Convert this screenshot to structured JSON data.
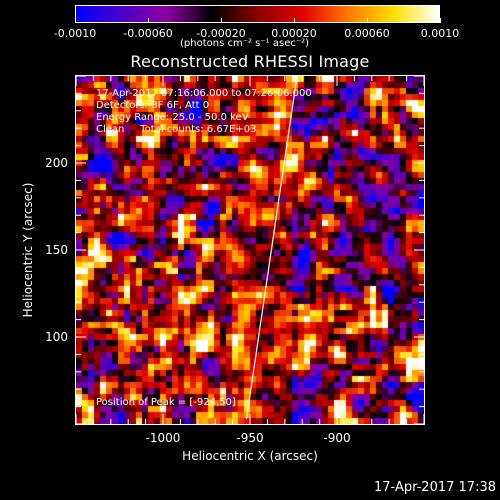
{
  "colorbar": {
    "min": -0.001,
    "max": 0.001,
    "tick_labels": [
      "-0.0010",
      "-0.00060",
      "-0.00020",
      "0.00020",
      "0.00060",
      "0.0010"
    ],
    "tick_values": [
      -0.001,
      -0.0006,
      -0.0002,
      0.0002,
      0.0006,
      0.001
    ],
    "units": "(photons cm⁻² s⁻¹ asec⁻²)",
    "colors": [
      "#0000ff",
      "#4b00c8",
      "#8a00a0",
      "#000000",
      "#8a0000",
      "#e00000",
      "#ff7a00",
      "#ffe000",
      "#ffffff"
    ]
  },
  "title": "Reconstructed RHESSI Image",
  "info_lines": [
    "17-Apr-2017 07:16:06.000 to 07:26:06.000",
    "Detectors: 3F 6F, Att 0",
    "Energy Range: 25.0 - 50.0 keV",
    "Clean     Total counts: 6.67E+03"
  ],
  "peak_label": "Position of Peak = [-924,50]",
  "axes": {
    "xlabel": "Heliocentric X (arcsec)",
    "ylabel": "Heliocentric Y (arcsec)",
    "xlim": [
      -1050,
      -850
    ],
    "ylim": [
      50,
      250
    ],
    "x_ticks": [
      -1000,
      -950,
      -900
    ],
    "x_tick_labels": [
      "-1000",
      "-950",
      "-900"
    ],
    "y_ticks": [
      100,
      150,
      200
    ],
    "y_tick_labels": [
      "100",
      "150",
      "200"
    ]
  },
  "limb_line": {
    "from": [
      -952,
      53
    ],
    "to": [
      -923,
      250
    ]
  },
  "footer": "17-Apr-2017 17:38",
  "chart_data": {
    "type": "heatmap",
    "title": "Reconstructed RHESSI Image",
    "xlabel": "Heliocentric X (arcsec)",
    "ylabel": "Heliocentric Y (arcsec)",
    "xlim": [
      -1050,
      -850
    ],
    "ylim": [
      50,
      250
    ],
    "value_range": [
      -0.001,
      0.001
    ],
    "grid": false
  }
}
